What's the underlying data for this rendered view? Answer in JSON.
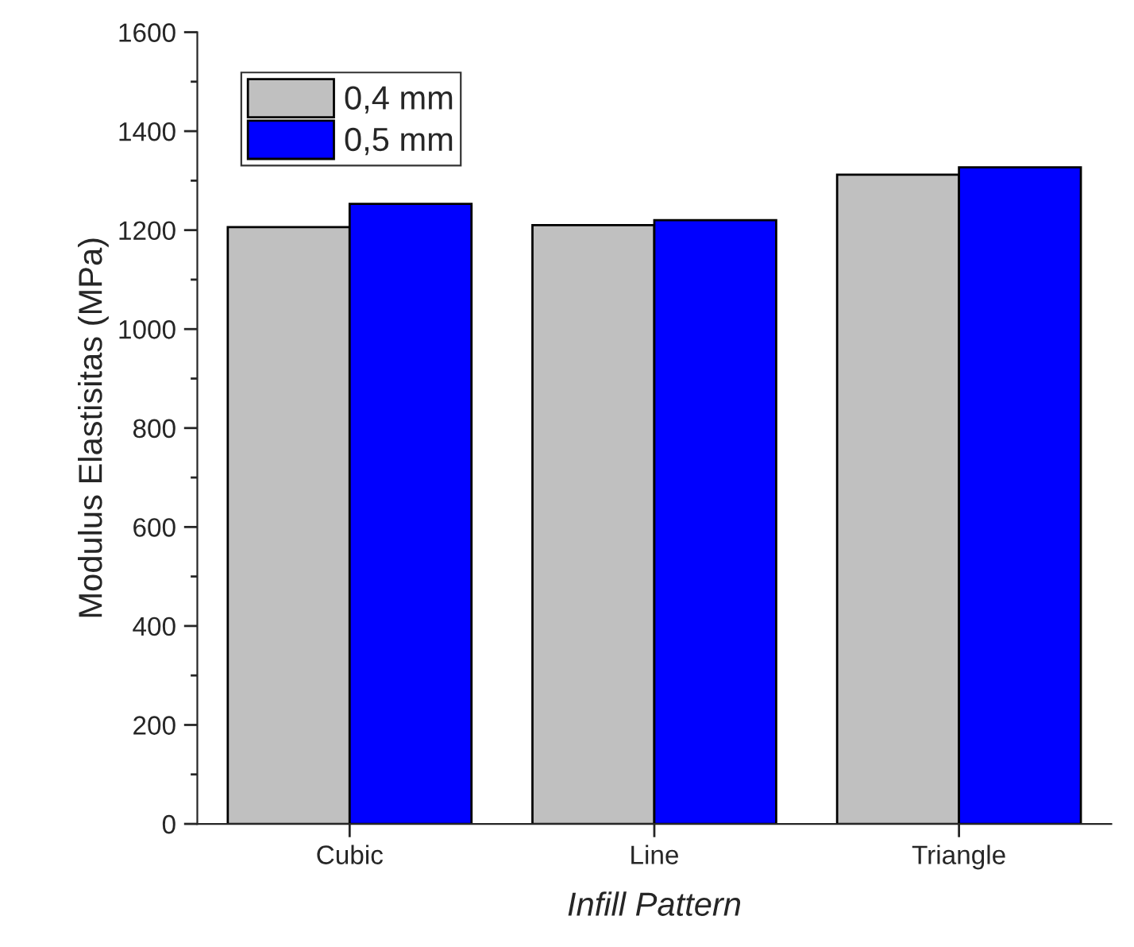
{
  "chart_data": {
    "type": "bar",
    "xlabel": "Infill Pattern",
    "ylabel": "Modulus Elastisitas (MPa)",
    "categories": [
      "Cubic",
      "Line",
      "Triangle"
    ],
    "series": [
      {
        "name": "0,4 mm",
        "color": "#c0c0c0",
        "values": [
          1206,
          1210,
          1312
        ]
      },
      {
        "name": "0,5 mm",
        "color": "#0000ff",
        "values": [
          1253,
          1220,
          1327
        ]
      }
    ],
    "ylim": [
      0,
      1600
    ],
    "yticks": [
      0,
      200,
      400,
      600,
      800,
      1000,
      1200,
      1400,
      1600
    ],
    "grid": false,
    "legend": "top left"
  }
}
